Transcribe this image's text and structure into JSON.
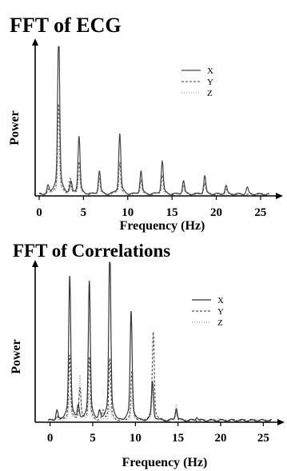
{
  "chart_data": [
    {
      "type": "line",
      "title": "FFT of ECG",
      "xlabel": "Frequency (Hz)",
      "ylabel": "Power",
      "xlim": [
        0,
        26
      ],
      "xticks": [
        0,
        5,
        10,
        15,
        20,
        25
      ],
      "legend_position": "top-right",
      "series": [
        {
          "name": "X",
          "color": "#444444",
          "dash": "",
          "peaks": [
            [
              1.0,
              0.05
            ],
            [
              2.2,
              1.0
            ],
            [
              3.6,
              0.07
            ],
            [
              4.5,
              0.35
            ],
            [
              6.8,
              0.14
            ],
            [
              9.1,
              0.37
            ],
            [
              11.5,
              0.14
            ],
            [
              13.9,
              0.2
            ],
            [
              16.3,
              0.08
            ],
            [
              18.7,
              0.11
            ],
            [
              21.1,
              0.05
            ],
            [
              23.5,
              0.04
            ]
          ]
        },
        {
          "name": "Y",
          "color": "#666666",
          "dash": "3,2",
          "peaks": [
            [
              1.0,
              0.03
            ],
            [
              2.2,
              0.55
            ],
            [
              3.5,
              0.09
            ],
            [
              4.5,
              0.2
            ],
            [
              6.8,
              0.1
            ],
            [
              9.1,
              0.2
            ],
            [
              11.5,
              0.09
            ],
            [
              13.9,
              0.12
            ],
            [
              16.3,
              0.06
            ],
            [
              18.7,
              0.07
            ],
            [
              21.1,
              0.03
            ]
          ]
        },
        {
          "name": "Z",
          "color": "#aaaaaa",
          "dash": "1,2",
          "peaks": [
            [
              1.0,
              0.02
            ],
            [
              2.2,
              0.3
            ],
            [
              3.5,
              0.06
            ],
            [
              4.5,
              0.12
            ],
            [
              6.8,
              0.06
            ],
            [
              9.1,
              0.1
            ],
            [
              11.5,
              0.05
            ],
            [
              13.9,
              0.06
            ],
            [
              16.3,
              0.04
            ]
          ]
        }
      ]
    },
    {
      "type": "line",
      "title": "FFT of Correlations",
      "xlabel": "Frequency (Hz)",
      "ylabel": "Power",
      "xlim": [
        -1,
        26
      ],
      "xticks": [
        0,
        5,
        10,
        15,
        20,
        25
      ],
      "legend_position": "top-right",
      "series": [
        {
          "name": "X",
          "color": "#333333",
          "dash": "",
          "peaks": [
            [
              0.8,
              0.06
            ],
            [
              2.3,
              0.82
            ],
            [
              3.3,
              0.08
            ],
            [
              4.6,
              0.79
            ],
            [
              5.8,
              0.05
            ],
            [
              7.0,
              1.0
            ],
            [
              9.5,
              0.62
            ],
            [
              12.0,
              0.22
            ],
            [
              14.8,
              0.07
            ],
            [
              17.2,
              0.02
            ]
          ]
        },
        {
          "name": "Y",
          "color": "#555555",
          "dash": "3,2",
          "peaks": [
            [
              0.8,
              0.03
            ],
            [
              2.3,
              0.37
            ],
            [
              3.5,
              0.18
            ],
            [
              4.6,
              0.36
            ],
            [
              6.2,
              0.05
            ],
            [
              7.0,
              0.35
            ],
            [
              9.6,
              0.28
            ],
            [
              12.1,
              0.5
            ],
            [
              14.8,
              0.05
            ]
          ]
        },
        {
          "name": "Z",
          "color": "#9a9a9a",
          "dash": "1,2",
          "peaks": [
            [
              0.8,
              0.02
            ],
            [
              2.3,
              0.14
            ],
            [
              3.5,
              0.26
            ],
            [
              4.6,
              0.15
            ],
            [
              7.0,
              0.1
            ],
            [
              9.6,
              0.12
            ],
            [
              12.1,
              0.2
            ],
            [
              14.8,
              0.09
            ],
            [
              19.8,
              0.02
            ]
          ]
        }
      ]
    }
  ]
}
